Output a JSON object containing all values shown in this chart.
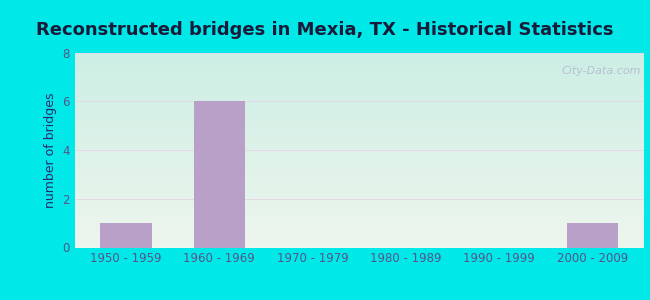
{
  "title": "Reconstructed bridges in Mexia, TX - Historical Statistics",
  "categories": [
    "1950 - 1959",
    "1960 - 1969",
    "1970 - 1979",
    "1980 - 1989",
    "1990 - 1999",
    "2000 - 2009"
  ],
  "values": [
    1,
    6,
    0,
    0,
    0,
    1
  ],
  "bar_color": "#b8a0c8",
  "ylabel": "number of bridges",
  "ylim": [
    0,
    8
  ],
  "yticks": [
    0,
    2,
    4,
    6,
    8
  ],
  "background_outer": "#00e8e8",
  "background_inner_top": "#edf5ed",
  "background_inner_bottom": "#cceee4",
  "title_fontsize": 13,
  "title_fontweight": "bold",
  "title_color": "#1a1a3a",
  "bar_width": 0.55,
  "watermark": "City-Data.com",
  "tick_color": "#555588",
  "ylabel_color": "#2a2a6a",
  "tick_fontsize": 8.5,
  "ylabel_fontsize": 9
}
